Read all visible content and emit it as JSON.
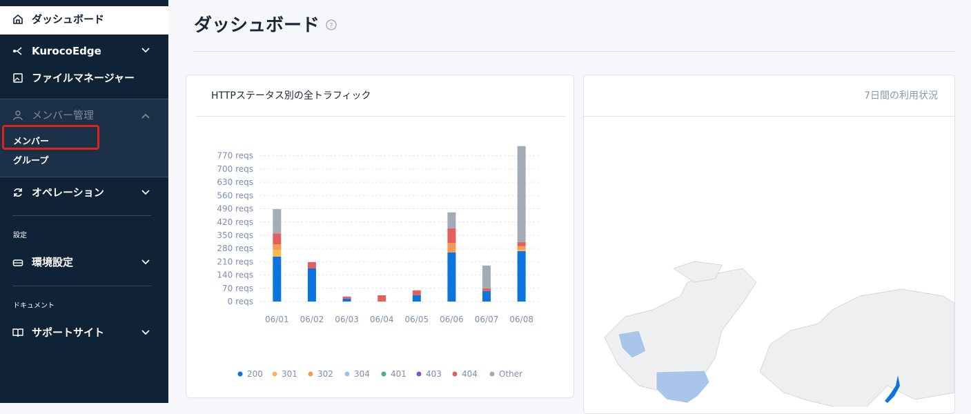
{
  "sidebar": {
    "items": [
      "ダッシュボード",
      "KurocoEdge",
      "ファイルマネージャー",
      "メンバー管理",
      "オペレーション"
    ],
    "member_children": [
      "メンバー",
      "グループ"
    ],
    "sections": [
      {
        "heading": "設定",
        "items": [
          "環境設定"
        ]
      },
      {
        "heading": "ドキュメント",
        "items": [
          "サポートサイト"
        ]
      }
    ]
  },
  "header": {
    "title": "ダッシュボード"
  },
  "cards": [
    {
      "title": "HTTPステータス別の全トラフィック"
    },
    {
      "title": "7日間の利用状況"
    }
  ],
  "chart_data": {
    "type": "bar",
    "stacked": true,
    "categories": [
      "06/01",
      "06/02",
      "06/03",
      "06/04",
      "06/05",
      "06/06",
      "06/07",
      "06/08"
    ],
    "series": [
      {
        "name": "200",
        "color": "#0b74de",
        "values": [
          237,
          175,
          15,
          0,
          33,
          259,
          55,
          266
        ]
      },
      {
        "name": "301",
        "color": "#f7b84f",
        "values": [
          36,
          0,
          0,
          0,
          0,
          0,
          0,
          8
        ]
      },
      {
        "name": "302",
        "color": "#f39a55",
        "values": [
          29,
          0,
          0,
          0,
          0,
          51,
          0,
          18
        ]
      },
      {
        "name": "304",
        "color": "#9ec3ea",
        "values": [
          0,
          0,
          0,
          0,
          0,
          0,
          0,
          0
        ]
      },
      {
        "name": "401",
        "color": "#4fae7e",
        "values": [
          0,
          0,
          0,
          0,
          0,
          0,
          0,
          0
        ]
      },
      {
        "name": "403",
        "color": "#7d58c4",
        "values": [
          0,
          0,
          0,
          0,
          0,
          0,
          0,
          0
        ]
      },
      {
        "name": "404",
        "color": "#e2605f",
        "values": [
          58,
          33,
          11,
          33,
          26,
          77,
          15,
          22
        ]
      },
      {
        "name": "Other",
        "color": "#a2acb8",
        "values": [
          128,
          0,
          0,
          0,
          0,
          84,
          120,
          507
        ]
      }
    ],
    "ylim": [
      0,
      820
    ],
    "yticks": [
      {
        "value": 0,
        "label": "0 reqs"
      },
      {
        "value": 70,
        "label": "70 reqs"
      },
      {
        "value": 140,
        "label": "140 reqs"
      },
      {
        "value": 210,
        "label": "210 reqs"
      },
      {
        "value": 280,
        "label": "280 reqs"
      },
      {
        "value": 350,
        "label": "350 reqs"
      },
      {
        "value": 420,
        "label": "420 reqs"
      },
      {
        "value": 490,
        "label": "490 reqs"
      },
      {
        "value": 560,
        "label": "560 reqs"
      },
      {
        "value": 630,
        "label": "630 reqs"
      },
      {
        "value": 700,
        "label": "700 reqs"
      },
      {
        "value": 770,
        "label": "770 reqs"
      }
    ],
    "grid": true
  }
}
